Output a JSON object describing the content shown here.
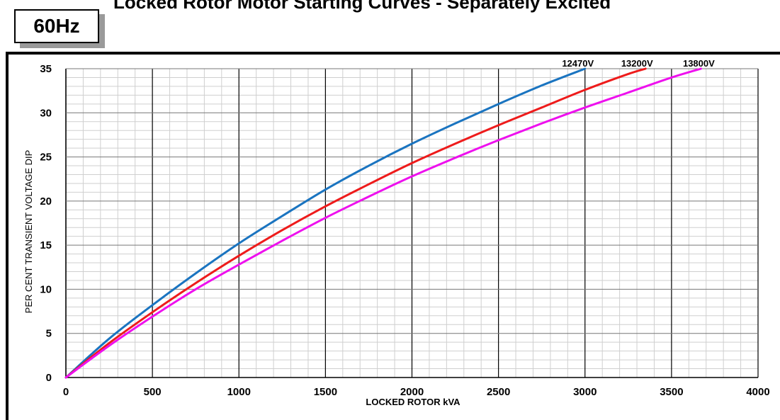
{
  "header": {
    "title": "Locked Rotor Motor Starting Curves - Separately Excited",
    "frequency_badge": "60Hz"
  },
  "chart_data": {
    "type": "line",
    "title": "Locked Rotor Motor Starting Curves - Separately Excited",
    "xlabel": "LOCKED ROTOR kVA",
    "ylabel": "PER CENT TRANSIENT VOLTAGE DIP",
    "xlim": [
      0,
      4000
    ],
    "ylim": [
      0,
      35
    ],
    "x_ticks": [
      "0",
      "500",
      "1000",
      "1500",
      "2000",
      "2500",
      "3000",
      "3500",
      "4000"
    ],
    "y_ticks": [
      "0",
      "5",
      "10",
      "15",
      "20",
      "25",
      "30",
      "35"
    ],
    "grid": true,
    "series": [
      {
        "name": "12470V",
        "color": "#1a74c0",
        "x": [
          0,
          250,
          500,
          750,
          1000,
          1250,
          1500,
          1750,
          2000,
          2250,
          2500,
          2750,
          3000
        ],
        "y": [
          0,
          4.4,
          8.2,
          11.8,
          15.2,
          18.3,
          21.3,
          24.0,
          26.5,
          28.8,
          31.0,
          33.1,
          35.0
        ]
      },
      {
        "name": "13200V",
        "color": "#ee1b1b",
        "x": [
          0,
          250,
          500,
          750,
          1000,
          1250,
          1500,
          1750,
          2000,
          2250,
          2500,
          2750,
          3000,
          3250,
          3350
        ],
        "y": [
          0,
          3.9,
          7.4,
          10.7,
          13.8,
          16.7,
          19.4,
          21.9,
          24.3,
          26.5,
          28.6,
          30.6,
          32.6,
          34.4,
          35.0
        ]
      },
      {
        "name": "13800V",
        "color": "#ee10ee",
        "x": [
          0,
          250,
          500,
          750,
          1000,
          1250,
          1500,
          1750,
          2000,
          2250,
          2500,
          2750,
          3000,
          3250,
          3500,
          3670
        ],
        "y": [
          0,
          3.6,
          6.9,
          10.0,
          12.8,
          15.5,
          18.1,
          20.5,
          22.8,
          24.9,
          26.9,
          28.8,
          30.6,
          32.3,
          34.0,
          35.0
        ]
      }
    ]
  }
}
